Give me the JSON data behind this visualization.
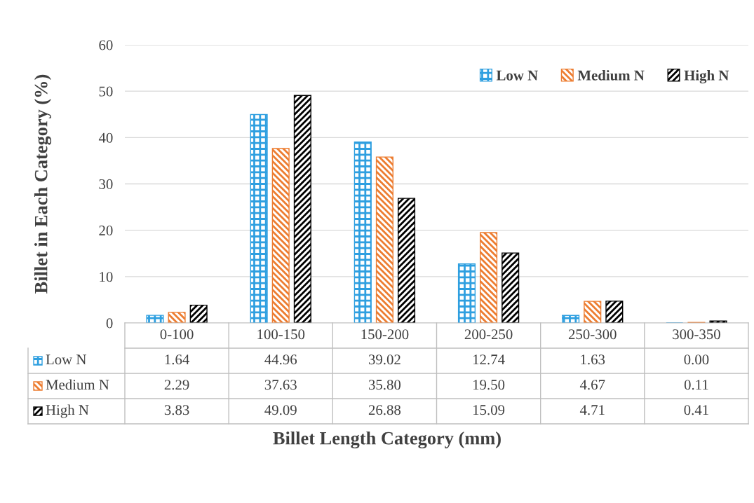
{
  "chart_data": {
    "type": "bar",
    "xlabel": "Billet Length Category (mm)",
    "ylabel": "Billet in Each Category (%)",
    "categories": [
      "0-100",
      "100-150",
      "150-200",
      "200-250",
      "250-300",
      "300-350"
    ],
    "series": [
      {
        "name": "Low N",
        "color": "#2e9fe0",
        "values": [
          1.64,
          44.96,
          39.02,
          12.74,
          1.63,
          0.0
        ],
        "value_labels": [
          "1.64",
          "44.96",
          "39.02",
          "12.74",
          "1.63",
          "0.00"
        ]
      },
      {
        "name": "Medium N",
        "color": "#ed7d31",
        "values": [
          2.29,
          37.63,
          35.8,
          19.5,
          4.67,
          0.11
        ],
        "value_labels": [
          "2.29",
          "37.63",
          "35.80",
          "19.50",
          "4.67",
          "0.11"
        ]
      },
      {
        "name": "High N",
        "color": "#000000",
        "values": [
          3.83,
          49.09,
          26.88,
          15.09,
          4.71,
          0.41
        ],
        "value_labels": [
          "3.83",
          "49.09",
          "26.88",
          "15.09",
          "4.71",
          "0.41"
        ]
      }
    ],
    "ylim": [
      0,
      60
    ],
    "yticks": [
      0,
      10,
      20,
      30,
      40,
      50,
      60
    ],
    "grid": "y",
    "legend": "top right"
  }
}
